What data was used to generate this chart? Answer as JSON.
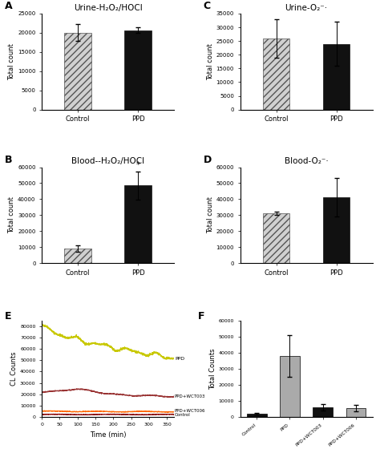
{
  "panel_A": {
    "title": "Urine-H₂O₂/HOCl",
    "ylabel": "Total count",
    "ylim": [
      0,
      25000
    ],
    "yticks": [
      0,
      5000,
      10000,
      15000,
      20000,
      25000
    ],
    "categories": [
      "Control",
      "PPD"
    ],
    "values": [
      20000,
      20700
    ],
    "errors": [
      2200,
      800
    ],
    "hatched": [
      true,
      false
    ],
    "label": "A",
    "significant": [
      false,
      false
    ]
  },
  "panel_B": {
    "title": "Blood--H₂O₂/HOCl",
    "ylabel": "Total count",
    "ylim": [
      0,
      60000
    ],
    "yticks": [
      0,
      10000,
      20000,
      30000,
      40000,
      50000,
      60000
    ],
    "categories": [
      "Control",
      "PPD"
    ],
    "values": [
      9000,
      48500
    ],
    "errors": [
      2000,
      9000
    ],
    "hatched": [
      true,
      false
    ],
    "label": "B",
    "significant": [
      false,
      true
    ]
  },
  "panel_C": {
    "title": "Urine-O₂⁻·",
    "ylabel": "Total count",
    "ylim": [
      0,
      35000
    ],
    "yticks": [
      0,
      5000,
      10000,
      15000,
      20000,
      25000,
      30000,
      35000
    ],
    "categories": [
      "Control",
      "PPD"
    ],
    "values": [
      26000,
      24000
    ],
    "errors": [
      7000,
      8000
    ],
    "hatched": [
      true,
      false
    ],
    "label": "C",
    "significant": [
      false,
      false
    ]
  },
  "panel_D": {
    "title": "Blood-O₂⁻·",
    "ylabel": "Total count",
    "ylim": [
      0,
      60000
    ],
    "yticks": [
      0,
      10000,
      20000,
      30000,
      40000,
      50000,
      60000
    ],
    "categories": [
      "Control",
      "PPD"
    ],
    "values": [
      31000,
      41000
    ],
    "errors": [
      1000,
      12000
    ],
    "hatched": [
      true,
      false
    ],
    "label": "D",
    "significant": [
      false,
      false
    ]
  },
  "panel_E": {
    "label": "E",
    "xlabel": "Time (min)",
    "ylabel": "CL Counts",
    "ylim": [
      0,
      85000
    ],
    "xlim": [
      0,
      370
    ],
    "xticks": [
      0,
      50,
      100,
      150,
      200,
      250,
      300,
      350
    ],
    "yticks": [
      0,
      10000,
      20000,
      30000,
      40000,
      50000,
      60000,
      70000,
      80000
    ],
    "ppd_color": "#c8c800",
    "wct003_color": "#993333",
    "wct006_color": "#ff6600",
    "control_color": "#880000"
  },
  "panel_F": {
    "label": "F",
    "ylabel": "Total Counts",
    "ylim": [
      0,
      60000
    ],
    "yticks": [
      0,
      10000,
      20000,
      30000,
      40000,
      50000,
      60000
    ],
    "categories": [
      "Control",
      "PPD",
      "PPD+WCT003",
      "PPD+WCT006"
    ],
    "values": [
      2000,
      38000,
      6000,
      5500
    ],
    "errors": [
      400,
      13000,
      2000,
      2000
    ],
    "hatched": [
      false,
      false,
      false,
      false
    ],
    "colors": [
      "#111111",
      "#aaaaaa",
      "#111111",
      "#aaaaaa"
    ]
  }
}
